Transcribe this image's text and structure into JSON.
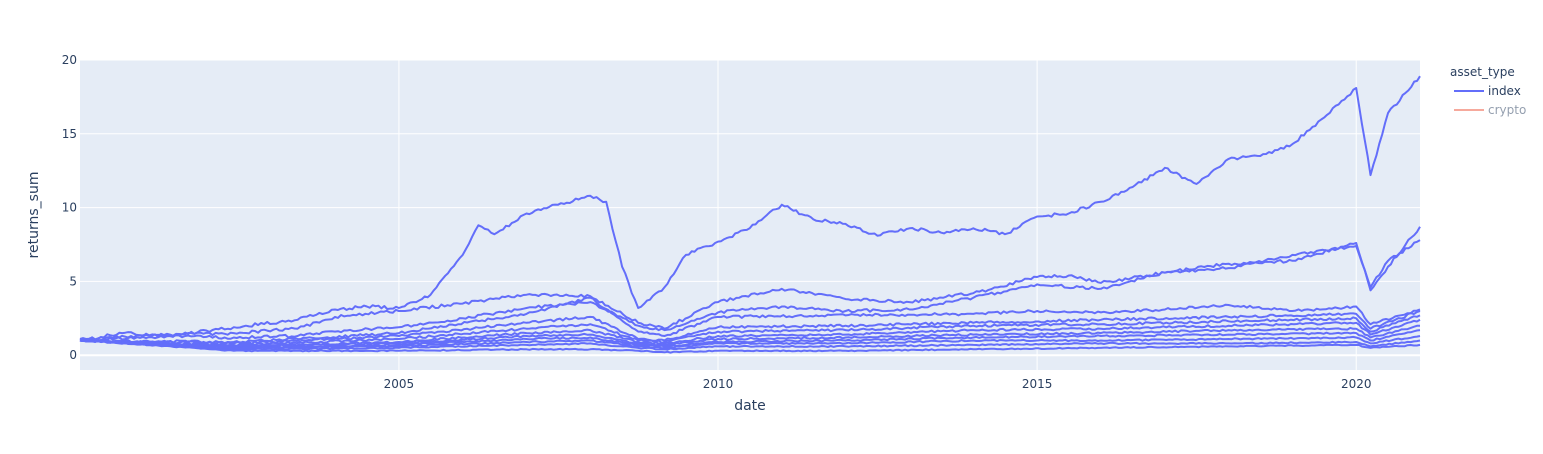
{
  "chart_data": {
    "type": "line",
    "title": "",
    "xlabel": "date",
    "ylabel": "returns_sum",
    "xlim": [
      "2000-01-03",
      "2020-12-31"
    ],
    "ylim": [
      -1,
      20
    ],
    "x_ticks": [
      "2005",
      "2010",
      "2015",
      "2020"
    ],
    "y_ticks": [
      "0",
      "5",
      "10",
      "15",
      "20"
    ],
    "grid": true,
    "plot_background": "#e5ecf6",
    "legend": {
      "title": "asset_type",
      "placement": "right",
      "entries": [
        {
          "name": "index",
          "color": "#636efa",
          "visible": true
        },
        {
          "name": "crypto",
          "color": "#ef553b",
          "visible": false
        }
      ]
    },
    "series": [
      {
        "name": "index",
        "color": "#636efa",
        "x": [
          "2000-01-03",
          "2000-09-01",
          "2001-06-01",
          "2002-06-01",
          "2003-06-01",
          "2004-01-01",
          "2004-07-01",
          "2005-01-01",
          "2005-07-01",
          "2006-01-01",
          "2006-04-01",
          "2006-07-01",
          "2007-01-01",
          "2007-07-01",
          "2008-01-01",
          "2008-04-01",
          "2008-07-01",
          "2008-10-01",
          "2009-03-01",
          "2009-07-01",
          "2010-01-01",
          "2010-07-01",
          "2011-01-01",
          "2011-07-01",
          "2012-01-01",
          "2012-07-01",
          "2013-01-01",
          "2013-07-01",
          "2014-01-01",
          "2014-07-01",
          "2015-01-01",
          "2015-07-01",
          "2016-01-01",
          "2016-07-01",
          "2017-01-01",
          "2017-07-01",
          "2018-01-01",
          "2018-07-01",
          "2019-01-01",
          "2019-07-01",
          "2020-01-01",
          "2020-03-23",
          "2020-07-01",
          "2020-12-31"
        ],
        "values": [
          1.0,
          1.5,
          1.3,
          1.9,
          2.4,
          3.1,
          3.3,
          3.2,
          4.1,
          6.8,
          8.8,
          8.2,
          9.6,
          10.2,
          10.8,
          10.4,
          6.0,
          3.2,
          4.6,
          6.8,
          7.7,
          8.6,
          10.2,
          9.2,
          8.9,
          8.1,
          8.6,
          8.3,
          8.6,
          8.2,
          9.4,
          9.6,
          10.4,
          11.4,
          12.7,
          11.6,
          13.3,
          13.5,
          14.3,
          16.1,
          18.1,
          12.2,
          16.4,
          18.9
        ]
      },
      {
        "name": "index",
        "color": "#636efa",
        "x": [
          "2000-01-03",
          "2001-06-01",
          "2002-06-01",
          "2003-06-01",
          "2004-01-01",
          "2005-01-01",
          "2006-01-01",
          "2007-01-01",
          "2008-01-01",
          "2008-10-01",
          "2009-03-01",
          "2010-01-01",
          "2011-01-01",
          "2012-01-01",
          "2013-01-01",
          "2014-01-01",
          "2015-01-01",
          "2015-07-01",
          "2016-01-01",
          "2017-01-01",
          "2018-01-01",
          "2019-01-01",
          "2020-01-01",
          "2020-03-23",
          "2020-07-01",
          "2020-12-31"
        ],
        "values": [
          1.1,
          1.4,
          1.5,
          1.8,
          2.6,
          3.0,
          3.5,
          4.1,
          4.0,
          2.2,
          1.8,
          3.6,
          4.5,
          3.8,
          3.6,
          4.2,
          5.3,
          5.4,
          4.9,
          5.6,
          6.2,
          6.4,
          7.6,
          4.4,
          6.0,
          8.7
        ]
      },
      {
        "name": "index",
        "color": "#636efa",
        "x": [
          "2000-01-03",
          "2001-06-01",
          "2002-06-01",
          "2003-06-01",
          "2004-01-01",
          "2005-01-01",
          "2006-01-01",
          "2007-01-01",
          "2008-01-01",
          "2008-10-01",
          "2009-03-01",
          "2010-01-01",
          "2011-01-01",
          "2012-01-01",
          "2013-01-01",
          "2014-01-01",
          "2015-01-01",
          "2016-01-01",
          "2017-01-01",
          "2018-01-01",
          "2019-01-01",
          "2020-01-01",
          "2020-03-23",
          "2020-07-01",
          "2020-12-31"
        ],
        "values": [
          1.0,
          1.3,
          1.2,
          1.3,
          1.6,
          1.9,
          2.5,
          3.2,
          3.6,
          2.0,
          1.7,
          2.9,
          3.3,
          3.0,
          3.1,
          3.9,
          4.8,
          4.5,
          5.6,
          5.9,
          6.8,
          7.4,
          4.6,
          6.4,
          7.8
        ]
      },
      {
        "name": "index",
        "color": "#636efa",
        "x": [
          "2000-01-03",
          "2002-06-01",
          "2003-06-01",
          "2005-01-01",
          "2007-01-01",
          "2008-01-01",
          "2008-10-01",
          "2009-03-01",
          "2010-01-01",
          "2012-01-01",
          "2014-01-01",
          "2015-01-01",
          "2016-01-01",
          "2017-01-01",
          "2018-01-01",
          "2019-01-01",
          "2020-01-01",
          "2020-03-23",
          "2020-12-31"
        ],
        "values": [
          1.0,
          0.9,
          1.1,
          1.5,
          2.8,
          3.9,
          1.6,
          1.3,
          2.6,
          2.7,
          2.8,
          3.0,
          2.9,
          3.1,
          3.4,
          3.0,
          3.3,
          2.1,
          3.1
        ]
      },
      {
        "name": "index",
        "color": "#636efa",
        "x": [
          "2000-01-03",
          "2002-06-01",
          "2005-01-01",
          "2007-01-01",
          "2008-01-01",
          "2008-10-01",
          "2009-03-01",
          "2010-01-01",
          "2012-01-01",
          "2014-01-01",
          "2016-01-01",
          "2018-01-01",
          "2020-01-01",
          "2020-03-23",
          "2020-12-31"
        ],
        "values": [
          1.0,
          0.8,
          1.3,
          2.2,
          2.6,
          1.1,
          1.0,
          1.9,
          2.0,
          2.2,
          2.4,
          2.6,
          2.8,
          1.8,
          3.0
        ]
      },
      {
        "name": "index",
        "color": "#636efa",
        "x": [
          "2000-01-03",
          "2002-06-01",
          "2005-01-01",
          "2007-01-01",
          "2008-01-01",
          "2008-10-01",
          "2009-03-01",
          "2010-01-01",
          "2012-01-01",
          "2014-01-01",
          "2016-01-01",
          "2018-01-01",
          "2020-01-01",
          "2020-03-23",
          "2020-12-31"
        ],
        "values": [
          1.0,
          0.7,
          1.1,
          1.8,
          2.1,
          1.0,
          0.9,
          1.6,
          1.7,
          2.0,
          2.1,
          2.3,
          2.5,
          1.6,
          2.7
        ]
      },
      {
        "name": "index",
        "color": "#636efa",
        "x": [
          "2000-01-03",
          "2002-06-01",
          "2005-01-01",
          "2007-01-01",
          "2008-01-01",
          "2008-10-01",
          "2009-03-01",
          "2010-01-01",
          "2012-01-01",
          "2014-01-01",
          "2016-01-01",
          "2018-01-01",
          "2020-01-01",
          "2020-03-23",
          "2020-12-31"
        ],
        "values": [
          1.0,
          0.6,
          0.9,
          1.5,
          1.7,
          0.9,
          0.8,
          1.3,
          1.4,
          1.7,
          1.8,
          2.0,
          2.2,
          1.4,
          2.4
        ]
      },
      {
        "name": "index",
        "color": "#636efa",
        "x": [
          "2000-01-03",
          "2002-06-01",
          "2005-01-01",
          "2007-01-01",
          "2008-01-01",
          "2008-10-01",
          "2009-03-01",
          "2010-01-01",
          "2012-01-01",
          "2014-01-01",
          "2016-01-01",
          "2018-01-01",
          "2020-01-01",
          "2020-03-23",
          "2020-12-31"
        ],
        "values": [
          1.0,
          0.6,
          0.8,
          1.3,
          1.4,
          0.8,
          0.7,
          1.1,
          1.2,
          1.4,
          1.5,
          1.7,
          1.8,
          1.2,
          2.0
        ]
      },
      {
        "name": "index",
        "color": "#636efa",
        "x": [
          "2000-01-03",
          "2002-06-01",
          "2005-01-01",
          "2007-01-01",
          "2008-01-01",
          "2008-10-01",
          "2009-03-01",
          "2010-01-01",
          "2012-01-01",
          "2014-01-01",
          "2016-01-01",
          "2018-01-01",
          "2020-01-01",
          "2020-03-23",
          "2020-12-31"
        ],
        "values": [
          1.0,
          0.5,
          0.7,
          1.1,
          1.2,
          0.7,
          0.6,
          0.9,
          1.0,
          1.2,
          1.3,
          1.4,
          1.5,
          1.0,
          1.7
        ]
      },
      {
        "name": "index",
        "color": "#636efa",
        "x": [
          "2000-01-03",
          "2002-06-01",
          "2005-01-01",
          "2007-01-01",
          "2008-01-01",
          "2008-10-01",
          "2009-03-01",
          "2010-01-01",
          "2012-01-01",
          "2014-01-01",
          "2016-01-01",
          "2018-01-01",
          "2020-01-01",
          "2020-03-23",
          "2020-12-31"
        ],
        "values": [
          1.0,
          0.5,
          0.6,
          0.9,
          1.0,
          0.6,
          0.5,
          0.8,
          0.8,
          1.0,
          1.0,
          1.1,
          1.2,
          0.8,
          1.3
        ]
      },
      {
        "name": "index",
        "color": "#636efa",
        "x": [
          "2000-01-03",
          "2002-06-01",
          "2005-01-01",
          "2007-01-01",
          "2008-01-01",
          "2008-10-01",
          "2009-03-01",
          "2010-01-01",
          "2012-01-01",
          "2014-01-01",
          "2016-01-01",
          "2018-01-01",
          "2020-01-01",
          "2020-03-23",
          "2020-12-31"
        ],
        "values": [
          1.0,
          0.4,
          0.5,
          0.7,
          0.8,
          0.5,
          0.4,
          0.6,
          0.6,
          0.7,
          0.8,
          0.8,
          0.9,
          0.6,
          1.0
        ]
      },
      {
        "name": "index",
        "color": "#636efa",
        "x": [
          "2000-01-03",
          "2002-06-01",
          "2005-01-01",
          "2007-01-01",
          "2008-01-01",
          "2008-10-01",
          "2009-03-01",
          "2010-01-01",
          "2012-01-01",
          "2014-01-01",
          "2016-01-01",
          "2018-01-01",
          "2020-01-01",
          "2020-03-23",
          "2020-12-31"
        ],
        "values": [
          1.0,
          0.3,
          0.3,
          0.4,
          0.4,
          0.3,
          0.2,
          0.3,
          0.3,
          0.4,
          0.5,
          0.6,
          0.7,
          0.5,
          0.7
        ]
      }
    ]
  }
}
